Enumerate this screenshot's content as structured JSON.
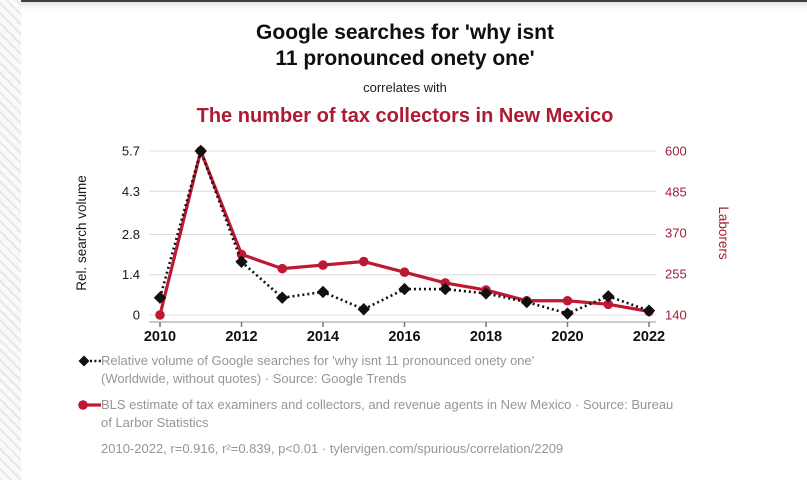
{
  "page": {
    "title_line1": "Google searches for 'why isnt",
    "title_line2": "11 pronounced onety one'",
    "connector": "correlates with",
    "subtitle": "The number of tax collectors in New Mexico"
  },
  "colors": {
    "title_red": "#ad1a32",
    "series_red": "#bf1932",
    "axis_red": "#9e2038",
    "series_black": "#101010",
    "grid": "#dcdcdc",
    "axis_line": "#9a9a9a",
    "tick_text": "#1a1a1a",
    "gray_text": "#969696"
  },
  "chart_data": {
    "type": "line",
    "x": [
      2010,
      2011,
      2012,
      2013,
      2014,
      2015,
      2016,
      2017,
      2018,
      2019,
      2020,
      2021,
      2022
    ],
    "x_ticks": [
      2010,
      2012,
      2014,
      2016,
      2018,
      2020,
      2022
    ],
    "series": [
      {
        "name": "Relative volume of Google searches for 'why isnt 11 pronounced onety one'",
        "axis": "left",
        "style": "dotted",
        "marker": "diamond",
        "values": [
          0.6,
          5.7,
          1.85,
          0.6,
          0.8,
          0.2,
          0.9,
          0.9,
          0.75,
          0.45,
          0.05,
          0.65,
          0.15
        ]
      },
      {
        "name": "BLS estimate of tax examiners and collectors, and revenue agents in New Mexico",
        "axis": "right",
        "style": "solid",
        "marker": "circle",
        "values": [
          140,
          600,
          310,
          270,
          280,
          290,
          260,
          230,
          210,
          180,
          180,
          170,
          150
        ]
      }
    ],
    "left_axis": {
      "label": "Rel. search volume",
      "ticks": [
        0,
        1.4,
        2.8,
        4.3,
        5.7
      ],
      "tick_labels": [
        "0",
        "1.4",
        "2.8",
        "4.3",
        "5.7"
      ],
      "range": [
        0,
        5.7
      ]
    },
    "right_axis": {
      "label": "Laborers",
      "ticks": [
        140,
        255,
        370,
        485,
        600
      ],
      "tick_labels": [
        "140",
        "255",
        "370",
        "485",
        "600"
      ],
      "range": [
        140,
        600
      ]
    },
    "grid": "horizontal",
    "legend_position": "bottom"
  },
  "legend": {
    "items": [
      {
        "label": "Relative volume of Google searches for 'why isnt 11 pronounced onety one' (Worldwide, without quotes) · Source: Google Trends"
      },
      {
        "label": "BLS estimate of tax examiners and collectors, and revenue agents in New Mexico · Source: Bureau of Larbor Statistics"
      }
    ],
    "footnote": "2010-2022, r=0.916, r²=0.839, p<0.01 · tylervigen.com/spurious/correlation/2209"
  }
}
